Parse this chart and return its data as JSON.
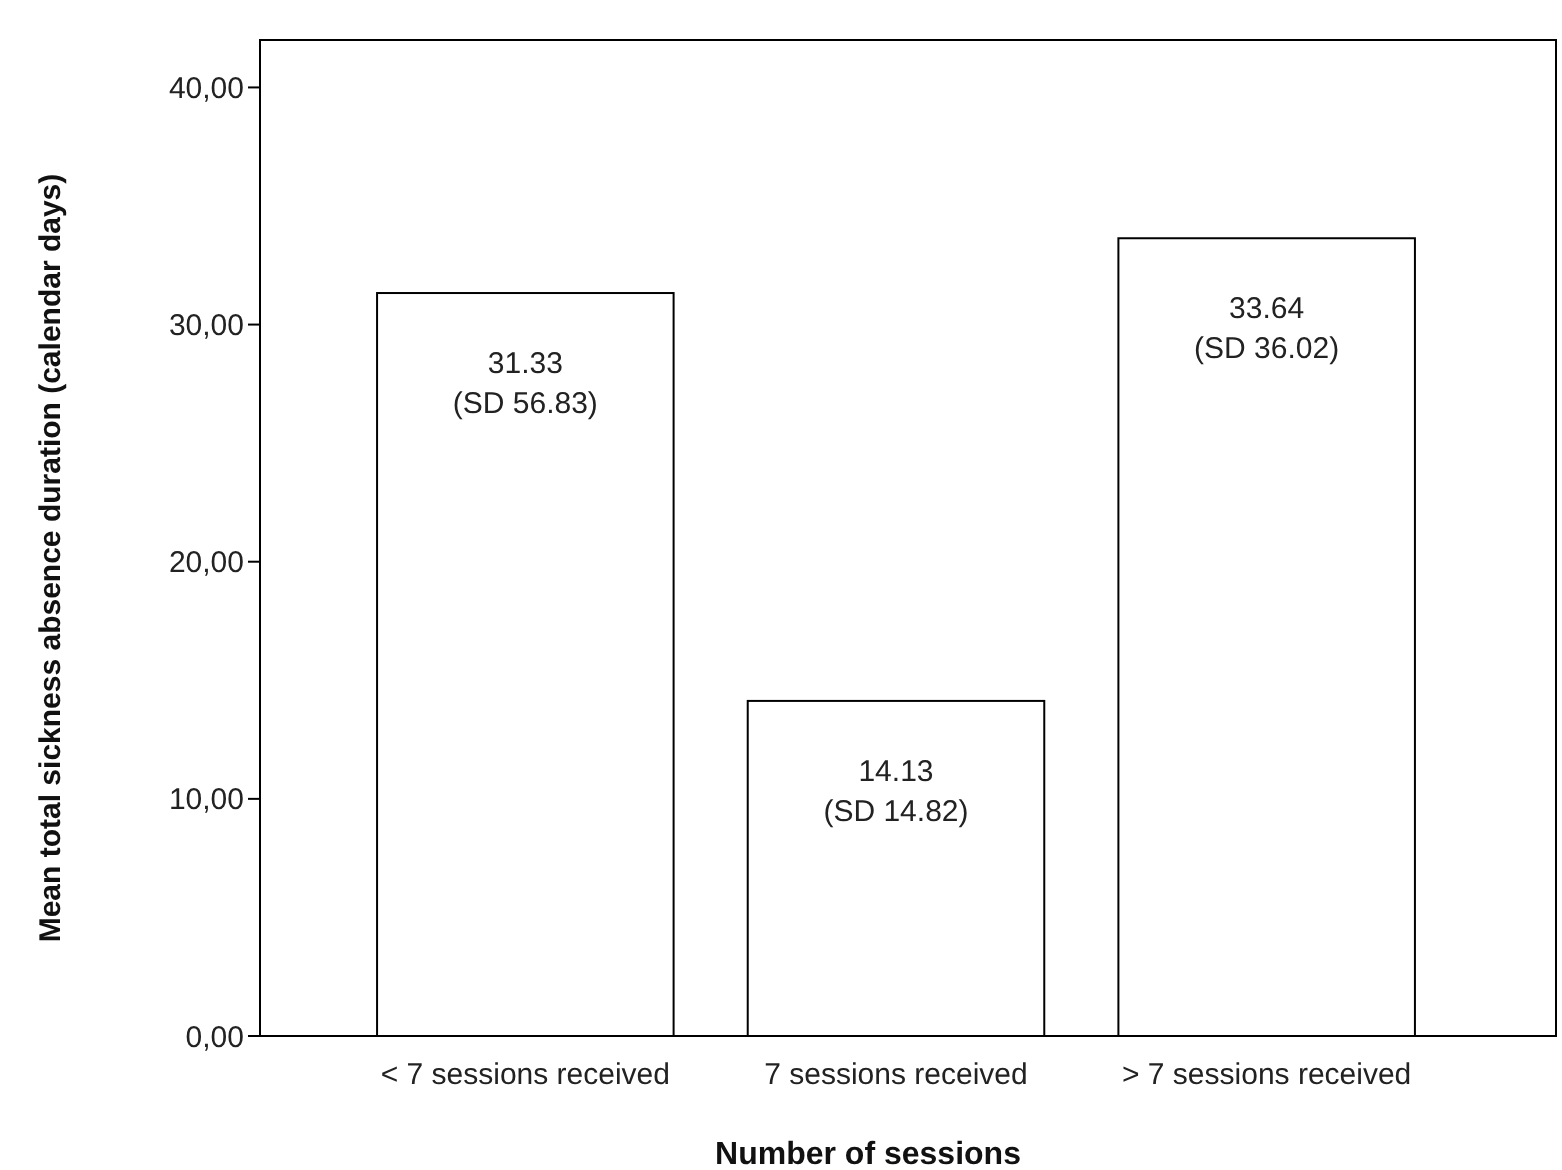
{
  "chart_data": {
    "type": "bar",
    "xlabel": "Number of sessions",
    "ylabel": "Mean total sickness absence duration (calendar days)",
    "categories": [
      "< 7 sessions received",
      "7 sessions received",
      "> 7 sessions received"
    ],
    "values": [
      31.33,
      14.13,
      33.64
    ],
    "color": "#ffffff",
    "value_labels": [
      "31.33\n(SD 56.83)",
      "14.13\n(SD 14.82)",
      "33.64\n(SD 36.02)"
    ],
    "ylim": [
      0,
      42
    ],
    "yticks": [
      {
        "value": 0,
        "label": "0,00"
      },
      {
        "value": 10,
        "label": "10,00"
      },
      {
        "value": 20,
        "label": "20,00"
      },
      {
        "value": 30,
        "label": "30,00"
      },
      {
        "value": 40,
        "label": "40,00"
      }
    ],
    "grid": false
  }
}
